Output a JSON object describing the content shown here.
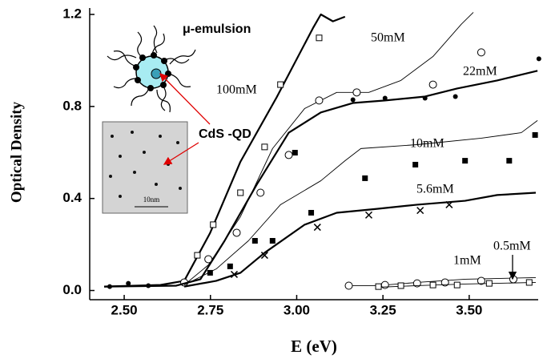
{
  "chart_data": {
    "type": "line",
    "x_label": "E (eV)",
    "y_label": "Optical Density",
    "xlim": [
      2.4,
      3.7
    ],
    "ylim": [
      -0.04,
      1.2
    ],
    "xticks": [
      {
        "value": 2.5,
        "label": "2.50"
      },
      2.75,
      {
        "value": 3.0,
        "label": "3.00"
      },
      3.25,
      {
        "value": 3.5,
        "label": "3.50"
      }
    ],
    "yticks": [
      {
        "value": 0,
        "label": "0.0"
      },
      {
        "value": 0.4,
        "label": "0.4"
      },
      {
        "value": 0.8,
        "label": "0.8"
      },
      {
        "value": 1.2,
        "label": "1.2"
      }
    ],
    "grid": false,
    "annotations": {
      "emulsion": "μ-emulsion",
      "qd": "CdS -QD",
      "scale": "10nm"
    },
    "series": [
      {
        "name": "100mM",
        "color": "#000000",
        "width": 2.2,
        "x": [
          2.442,
          2.605,
          2.674,
          2.749,
          2.837,
          2.942,
          3.047,
          3.07,
          3.105,
          3.14
        ],
        "values": [
          0.017,
          0.024,
          0.042,
          0.25,
          0.56,
          0.84,
          1.14,
          1.2,
          1.17,
          1.19
        ],
        "marker": "open-square",
        "marker_x": [
          2.712,
          2.758,
          2.837,
          2.907,
          2.953,
          3.065
        ],
        "marker_values": [
          0.153,
          0.286,
          0.425,
          0.624,
          0.895,
          1.098
        ]
      },
      {
        "name": "50mM",
        "color": "#000000",
        "width": 0.9,
        "x": [
          2.674,
          2.744,
          2.837,
          2.93,
          3.023,
          3.116,
          3.209,
          3.302,
          3.395,
          3.477,
          3.512
        ],
        "values": [
          0.024,
          0.111,
          0.321,
          0.617,
          0.791,
          0.861,
          0.861,
          0.913,
          1.017,
          1.157,
          1.209
        ],
        "marker": "open-circle",
        "marker_x": [
          2.674,
          2.744,
          2.826,
          2.895,
          2.977,
          3.065,
          3.174,
          3.395,
          3.535
        ],
        "marker_values": [
          0.035,
          0.136,
          0.251,
          0.425,
          0.589,
          0.826,
          0.861,
          0.895,
          1.035
        ]
      },
      {
        "name": "22mM",
        "color": "#000000",
        "width": 2.2,
        "x": [
          2.442,
          2.651,
          2.721,
          2.791,
          2.884,
          2.977,
          3.07,
          3.163,
          3.256,
          3.372,
          3.465,
          3.581,
          3.698
        ],
        "values": [
          0.017,
          0.021,
          0.049,
          0.216,
          0.46,
          0.686,
          0.774,
          0.815,
          0.826,
          0.843,
          0.878,
          0.913,
          0.955
        ],
        "marker": "filled-circle",
        "marker_x": [
          2.458,
          2.512,
          2.57,
          3.163,
          3.256,
          3.372,
          3.46,
          3.702
        ],
        "marker_values": [
          0.017,
          0.031,
          0.021,
          0.829,
          0.836,
          0.836,
          0.843,
          1.007
        ]
      },
      {
        "name": "10mM",
        "color": "#000000",
        "width": 0.9,
        "x": [
          2.674,
          2.767,
          2.86,
          2.953,
          3.07,
          3.14,
          3.186,
          3.349,
          3.535,
          3.651,
          3.698
        ],
        "values": [
          0.024,
          0.094,
          0.216,
          0.373,
          0.477,
          0.564,
          0.617,
          0.634,
          0.662,
          0.686,
          0.739
        ],
        "marker": "filled-square",
        "marker_x": [
          2.749,
          2.807,
          2.879,
          2.93,
          2.995,
          3.042,
          3.198,
          3.344,
          3.488,
          3.616,
          3.691
        ],
        "marker_values": [
          0.077,
          0.105,
          0.216,
          0.216,
          0.599,
          0.338,
          0.488,
          0.547,
          0.564,
          0.564,
          0.676
        ]
      },
      {
        "name": "5.6mM",
        "color": "#000000",
        "width": 2.2,
        "x": [
          2.674,
          2.767,
          2.837,
          2.907,
          3.023,
          3.116,
          3.233,
          3.349,
          3.488,
          3.581,
          3.693
        ],
        "values": [
          0.017,
          0.042,
          0.077,
          0.164,
          0.286,
          0.338,
          0.355,
          0.373,
          0.39,
          0.415,
          0.425
        ],
        "marker": "cross",
        "marker_x": [
          2.819,
          2.907,
          3.06,
          3.209,
          3.358,
          3.442
        ],
        "marker_values": [
          0.07,
          0.153,
          0.275,
          0.328,
          0.348,
          0.373
        ]
      },
      {
        "name": "1mM",
        "color": "#000000",
        "width": 0.9,
        "x": [
          3.14,
          3.233,
          3.349,
          3.488,
          3.693
        ],
        "values": [
          0.021,
          0.021,
          0.035,
          0.049,
          0.056
        ],
        "marker": "open-circle",
        "marker_x": [
          3.151,
          3.256,
          3.349,
          3.43,
          3.535,
          3.628
        ],
        "marker_values": [
          0.021,
          0.024,
          0.031,
          0.035,
          0.042,
          0.049
        ]
      },
      {
        "name": "0.5mM",
        "color": "#000000",
        "width": 0.9,
        "x": [
          3.233,
          3.349,
          3.488,
          3.693
        ],
        "values": [
          0.014,
          0.021,
          0.028,
          0.035
        ],
        "marker": "open-square",
        "marker_x": [
          3.237,
          3.302,
          3.395,
          3.465,
          3.558,
          3.674
        ],
        "marker_values": [
          0.017,
          0.021,
          0.024,
          0.024,
          0.031,
          0.035
        ]
      }
    ]
  }
}
